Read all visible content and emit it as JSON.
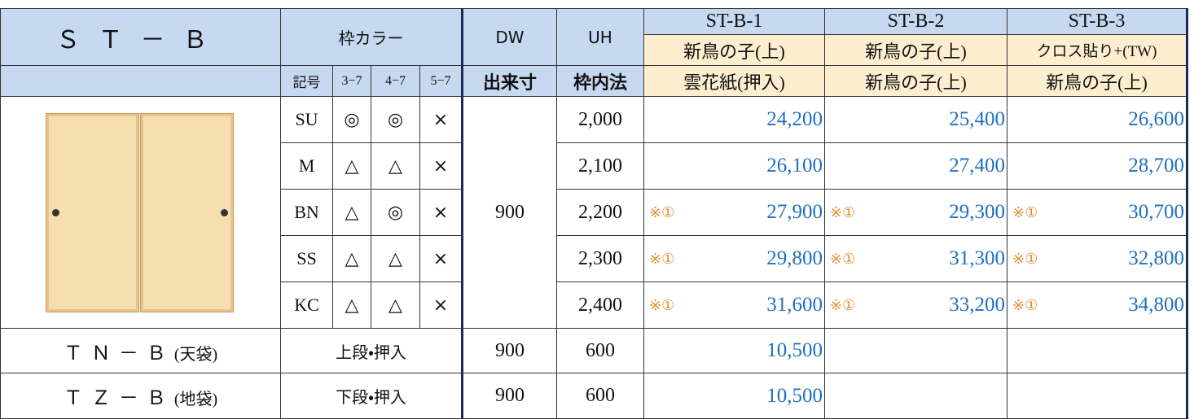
{
  "header": {
    "title": "ＳＴ－Ｂ",
    "frame_color": "枠カラー",
    "symbol": "記号",
    "colors": [
      "3−7",
      "4−7",
      "5−7"
    ],
    "dw": "DW",
    "dw_sub": "出来寸",
    "uh": "UH",
    "uh_sub": "枠内法",
    "variants": [
      {
        "name": "ST-B-1",
        "line1": "新鳥の子(上)",
        "line2": "雲花紙(押入)"
      },
      {
        "name": "ST-B-2",
        "line1": "新鳥の子(上)",
        "line2": "新鳥の子(上)"
      },
      {
        "name": "ST-B-3",
        "line1": "クロス貼り+(TW)",
        "line2": "新鳥の子(上)"
      }
    ]
  },
  "dw": "900",
  "rows": [
    {
      "code": "SU",
      "marks": [
        "◎",
        "◎",
        "×"
      ],
      "uh": "2,000",
      "prices": [
        {
          "value": "24,200"
        },
        {
          "value": "25,400"
        },
        {
          "value": "26,600"
        }
      ]
    },
    {
      "code": "M",
      "marks": [
        "△",
        "△",
        "×"
      ],
      "uh": "2,100",
      "prices": [
        {
          "value": "26,100"
        },
        {
          "value": "27,400"
        },
        {
          "value": "28,700"
        }
      ]
    },
    {
      "code": "BN",
      "marks": [
        "△",
        "◎",
        "×"
      ],
      "uh": "2,200",
      "prices": [
        {
          "note": "※①",
          "value": "27,900"
        },
        {
          "note": "※①",
          "value": "29,300"
        },
        {
          "note": "※①",
          "value": "30,700"
        }
      ]
    },
    {
      "code": "SS",
      "marks": [
        "△",
        "△",
        "×"
      ],
      "uh": "2,300",
      "prices": [
        {
          "note": "※①",
          "value": "29,800"
        },
        {
          "note": "※①",
          "value": "31,300"
        },
        {
          "note": "※①",
          "value": "32,800"
        }
      ]
    },
    {
      "code": "KC",
      "marks": [
        "△",
        "△",
        "×"
      ],
      "uh": "2,400",
      "prices": [
        {
          "note": "※①",
          "value": "31,600"
        },
        {
          "note": "※①",
          "value": "33,200"
        },
        {
          "note": "※①",
          "value": "34,800"
        }
      ]
    }
  ],
  "extras": [
    {
      "name": "ＴＮ－Ｂ",
      "suffix": "(天袋)",
      "position": "上段・押入",
      "dw": "900",
      "uh": "600",
      "price": "10,500"
    },
    {
      "name": "ＴＺ－Ｂ",
      "suffix": "(地袋)",
      "position": "下段・押入",
      "dw": "900",
      "uh": "600",
      "price": "10,500"
    }
  ]
}
